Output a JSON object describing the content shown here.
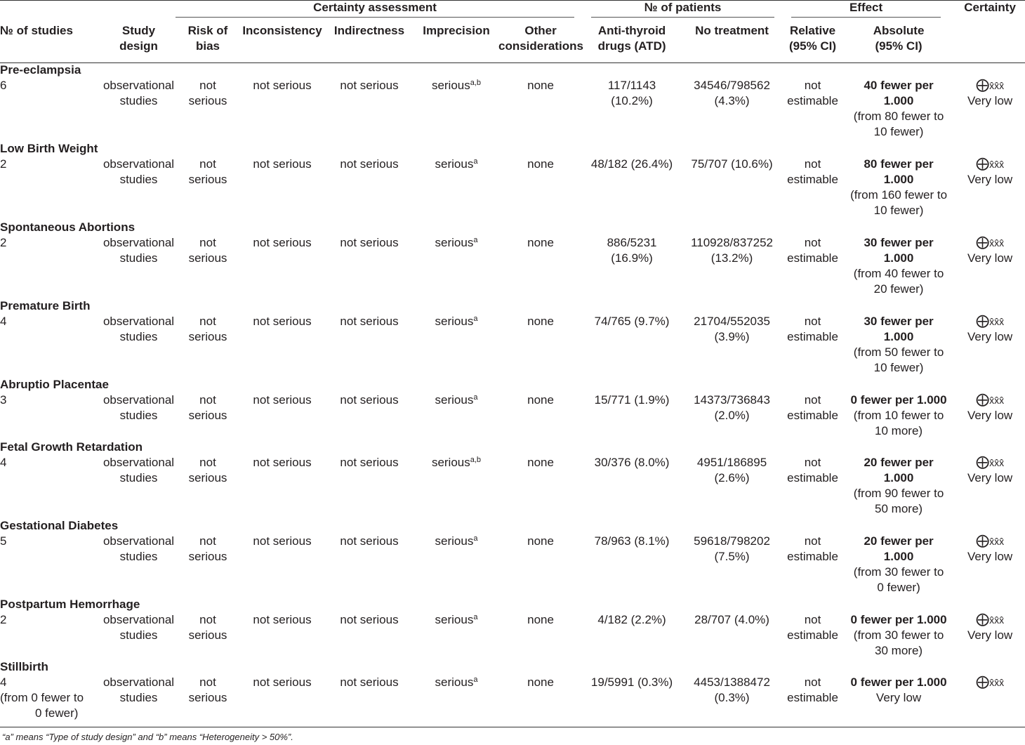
{
  "header": {
    "groups": {
      "certainty_assessment": "Certainty assessment",
      "patients": "№ of patients",
      "effect": "Effect",
      "certainty": "Certainty"
    },
    "columns": {
      "studies": "№ of studies",
      "design_1": "Study",
      "design_2": "design",
      "bias_1": "Risk of",
      "bias_2": "bias",
      "inconsistency": "Inconsistency",
      "indirectness": "Indirectness",
      "imprecision": "Imprecision",
      "other_1": "Other",
      "other_2": "considerations",
      "atd_1": "Anti-thyroid",
      "atd_2": "drugs (ATD)",
      "no_treatment": "No treatment",
      "relative_1": "Relative",
      "relative_2": "(95% CI)",
      "absolute_1": "Absolute",
      "absolute_2": "(95% CI)"
    }
  },
  "common": {
    "design_1": "observational",
    "design_2": "studies",
    "bias_1": "not",
    "bias_2": "serious",
    "not_serious": "not serious",
    "serious": "serious",
    "none": "none",
    "rel_1": "not",
    "rel_2": "estimable",
    "certainty_label": "Very low"
  },
  "rows": [
    {
      "title": "Pre-eclampsia",
      "studies": "6",
      "studies_2": "",
      "studies_3": "",
      "sup": "a,b",
      "atd_1": "117/1143",
      "atd_2": "(10.2%)",
      "nt_1": "34546/798562",
      "nt_2": "(4.3%)",
      "abs_bold_1": "40 fewer per",
      "abs_bold_2": "1.000",
      "abs_1": "(from 80 fewer to",
      "abs_2": "10 fewer)"
    },
    {
      "title": "Low Birth Weight",
      "studies": "2",
      "studies_2": "",
      "studies_3": "",
      "sup": "a",
      "atd_1": "48/182 (26.4%)",
      "atd_2": "",
      "nt_1": "75/707 (10.6%)",
      "nt_2": "",
      "abs_bold_1": "80 fewer per",
      "abs_bold_2": "1.000",
      "abs_1": "(from 160 fewer to",
      "abs_2": "10 fewer)"
    },
    {
      "title": "Spontaneous Abortions",
      "studies": "2",
      "studies_2": "",
      "studies_3": "",
      "sup": "a",
      "atd_1": "886/5231",
      "atd_2": "(16.9%)",
      "nt_1": "110928/837252",
      "nt_2": "(13.2%)",
      "abs_bold_1": "30 fewer per",
      "abs_bold_2": "1.000",
      "abs_1": "(from 40 fewer to",
      "abs_2": "20 fewer)"
    },
    {
      "title": "Premature Birth",
      "studies": "4",
      "studies_2": "",
      "studies_3": "",
      "sup": "a",
      "atd_1": "74/765 (9.7%)",
      "atd_2": "",
      "nt_1": "21704/552035",
      "nt_2": "(3.9%)",
      "abs_bold_1": "30 fewer per",
      "abs_bold_2": "1.000",
      "abs_1": "(from 50 fewer to",
      "abs_2": "10 fewer)"
    },
    {
      "title": "Abruptio Placentae",
      "studies": "3",
      "studies_2": "",
      "studies_3": "",
      "sup": "a",
      "atd_1": "15/771 (1.9%)",
      "atd_2": "",
      "nt_1": "14373/736843",
      "nt_2": "(2.0%)",
      "abs_bold_1": "0 fewer per 1.000",
      "abs_bold_2": "",
      "abs_1": "(from 10 fewer to",
      "abs_2": "10 more)"
    },
    {
      "title": "Fetal Growth Retardation",
      "studies": "4",
      "studies_2": "",
      "studies_3": "",
      "sup": "a,b",
      "atd_1": "30/376 (8.0%)",
      "atd_2": "",
      "nt_1": "4951/186895",
      "nt_2": "(2.6%)",
      "abs_bold_1": "20 fewer per",
      "abs_bold_2": "1.000",
      "abs_1": "(from 90 fewer to",
      "abs_2": "50 more)"
    },
    {
      "title": "Gestational Diabetes",
      "studies": "5",
      "studies_2": "",
      "studies_3": "",
      "sup": "a",
      "atd_1": "78/963 (8.1%)",
      "atd_2": "",
      "nt_1": "59618/798202",
      "nt_2": "(7.5%)",
      "abs_bold_1": "20 fewer per",
      "abs_bold_2": "1.000",
      "abs_1": "(from 30 fewer to",
      "abs_2": "0 fewer)"
    },
    {
      "title": "Postpartum Hemorrhage",
      "studies": "2",
      "studies_2": "",
      "studies_3": "",
      "sup": "a",
      "atd_1": "4/182 (2.2%)",
      "atd_2": "",
      "nt_1": "28/707 (4.0%)",
      "nt_2": "",
      "abs_bold_1": "0 fewer per 1.000",
      "abs_bold_2": "",
      "abs_1": "(from 30 fewer to",
      "abs_2": "30 more)"
    },
    {
      "title": "Stillbirth",
      "studies": "4",
      "studies_2": "(from 0 fewer to",
      "studies_3": "0 fewer)",
      "sup": "a",
      "atd_1": "19/5991 (0.3%)",
      "atd_2": "",
      "nt_1": "4453/1388472",
      "nt_2": "(0.3%)",
      "abs_bold_1": "0 fewer per 1.000",
      "abs_bold_2": "",
      "abs_1": "Very low",
      "abs_2": ""
    }
  ],
  "footnote": "“a” means “Type of study design” and “b” means “Heterogeneity > 50%”."
}
